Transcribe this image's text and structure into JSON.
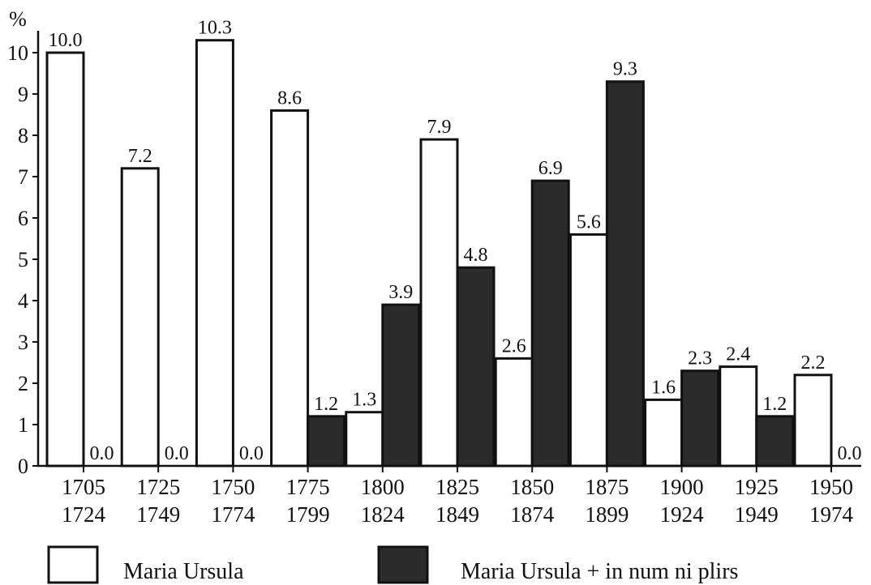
{
  "chart_data": {
    "type": "bar",
    "y_unit_label": "%",
    "ylim": [
      0,
      10
    ],
    "yticks": [
      "0",
      "1",
      "2",
      "3",
      "4",
      "5",
      "6",
      "7",
      "8",
      "9",
      "10"
    ],
    "categories": [
      [
        "1705",
        "1724"
      ],
      [
        "1725",
        "1749"
      ],
      [
        "1750",
        "1774"
      ],
      [
        "1775",
        "1799"
      ],
      [
        "1800",
        "1824"
      ],
      [
        "1825",
        "1849"
      ],
      [
        "1850",
        "1874"
      ],
      [
        "1875",
        "1899"
      ],
      [
        "1900",
        "1924"
      ],
      [
        "1925",
        "1949"
      ],
      [
        "1950",
        "1974"
      ]
    ],
    "series": [
      {
        "name": "Maria Ursula",
        "color": "#ffffff",
        "values": [
          10.0,
          7.2,
          10.3,
          8.6,
          1.3,
          7.9,
          2.6,
          5.6,
          1.6,
          2.4,
          2.2
        ],
        "labels": [
          "10.0",
          "7.2",
          "10.3",
          "8.6",
          "1.3",
          "7.9",
          "2.6",
          "5.6",
          "1.6",
          "2.4",
          "2.2"
        ]
      },
      {
        "name": "Maria Ursula + in num ni plirs",
        "color": "#2b2b2b",
        "values": [
          0.0,
          0.0,
          0.0,
          1.2,
          3.9,
          4.8,
          6.9,
          9.3,
          2.3,
          1.2,
          0.0
        ],
        "labels": [
          "0.0",
          "0.0",
          "0.0",
          "1.2",
          "3.9",
          "4.8",
          "6.9",
          "9.3",
          "2.3",
          "1.2",
          "0.0"
        ]
      }
    ],
    "grid": false,
    "legend_position": "bottom"
  }
}
